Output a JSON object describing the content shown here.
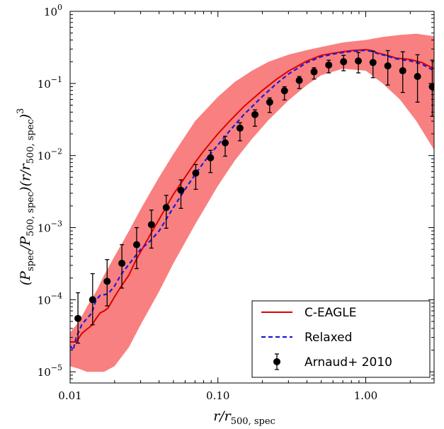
{
  "chart_data": {
    "type": "line",
    "title": "",
    "xlabel": "r/r_500,spec",
    "ylabel": "(P_spec/P_500,spec)(r/r_500,spec)^3",
    "xscale": "log",
    "yscale": "log",
    "xlim": [
      0.01,
      2.9
    ],
    "ylim": [
      7e-06,
      1.0
    ],
    "xticks": [
      {
        "value": 0.01,
        "label": "0.01"
      },
      {
        "value": 0.1,
        "label": "0.10"
      },
      {
        "value": 1.0,
        "label": "1.00"
      }
    ],
    "yticks": [
      {
        "value": 1e-05,
        "base": "10",
        "exp": "−5"
      },
      {
        "value": 0.0001,
        "base": "10",
        "exp": "−4"
      },
      {
        "value": 0.001,
        "base": "10",
        "exp": "−3"
      },
      {
        "value": 0.01,
        "base": "10",
        "exp": "−2"
      },
      {
        "value": 0.1,
        "base": "10",
        "exp": "−1"
      },
      {
        "value": 1,
        "base": "10",
        "exp": "0"
      }
    ],
    "grid": false,
    "legend": {
      "position": "bottom-right"
    },
    "colors": {
      "band": "#f98080",
      "cEagle": "#dd0000",
      "relaxed": "#1a1adf",
      "points": "#000000"
    },
    "band": {
      "x": [
        0.01,
        0.0115,
        0.013,
        0.015,
        0.017,
        0.02,
        0.025,
        0.03,
        0.04,
        0.05,
        0.07,
        0.1,
        0.13,
        0.17,
        0.22,
        0.3,
        0.4,
        0.5,
        0.7,
        1.0,
        1.3,
        1.7,
        2.2,
        2.9
      ],
      "upper": [
        3.5e-05,
        5e-05,
        8e-05,
        0.00013,
        0.00022,
        0.0004,
        0.0009,
        0.0018,
        0.005,
        0.0105,
        0.03,
        0.065,
        0.105,
        0.15,
        0.2,
        0.25,
        0.29,
        0.32,
        0.37,
        0.4,
        0.44,
        0.47,
        0.49,
        0.45
      ],
      "lower": [
        1.2e-05,
        1.1e-05,
        1e-05,
        1e-05,
        1e-05,
        1.2e-05,
        2.2e-05,
        4.5e-05,
        0.00013,
        0.00032,
        0.0011,
        0.0038,
        0.0085,
        0.017,
        0.031,
        0.058,
        0.095,
        0.13,
        0.16,
        0.15,
        0.1,
        0.06,
        0.03,
        0.012
      ]
    },
    "series": [
      {
        "name": "C-EAGLE",
        "x": [
          0.01,
          0.011,
          0.012,
          0.013,
          0.014,
          0.015,
          0.016,
          0.017,
          0.018,
          0.02,
          0.022,
          0.025,
          0.028,
          0.032,
          0.036,
          0.04,
          0.045,
          0.05,
          0.06,
          0.07,
          0.08,
          0.1,
          0.12,
          0.15,
          0.2,
          0.25,
          0.3,
          0.4,
          0.5,
          0.6,
          0.7,
          0.8,
          0.9,
          1.0,
          1.1,
          1.2,
          1.4,
          1.6,
          2.0,
          2.4,
          2.9
        ],
        "y": [
          2.6e-05,
          2.6e-05,
          3.4e-05,
          3.9e-05,
          4.4e-05,
          5.5e-05,
          6.6e-05,
          7e-05,
          7.6e-05,
          0.00011,
          0.00015,
          0.00022,
          0.00036,
          0.00058,
          0.0009,
          0.0013,
          0.002,
          0.0029,
          0.005,
          0.008,
          0.0115,
          0.02,
          0.03,
          0.048,
          0.08,
          0.115,
          0.148,
          0.205,
          0.245,
          0.262,
          0.275,
          0.285,
          0.29,
          0.295,
          0.285,
          0.265,
          0.245,
          0.225,
          0.215,
          0.195,
          0.16
        ]
      },
      {
        "name": "Relaxed",
        "x": [
          0.01,
          0.0105,
          0.011,
          0.012,
          0.013,
          0.014,
          0.015,
          0.016,
          0.018,
          0.02,
          0.022,
          0.025,
          0.03,
          0.035,
          0.04,
          0.05,
          0.06,
          0.07,
          0.08,
          0.1,
          0.12,
          0.15,
          0.2,
          0.25,
          0.3,
          0.4,
          0.5,
          0.6,
          0.7,
          0.8,
          0.9,
          1.0,
          1.1,
          1.2,
          1.4,
          1.6,
          2.0,
          2.4,
          2.9
        ],
        "y": [
          2.3e-05,
          2e-05,
          3e-05,
          4.5e-05,
          5.5e-05,
          6.5e-05,
          0.0001,
          0.000115,
          0.00012,
          0.000155,
          0.00022,
          0.00031,
          0.0005,
          0.00066,
          0.0009,
          0.0019,
          0.0034,
          0.0054,
          0.008,
          0.014,
          0.022,
          0.037,
          0.066,
          0.1,
          0.135,
          0.195,
          0.235,
          0.255,
          0.268,
          0.278,
          0.285,
          0.288,
          0.278,
          0.26,
          0.24,
          0.22,
          0.205,
          0.185,
          0.15
        ]
      },
      {
        "name": "Arnaud+ 2010",
        "type": "errorbar",
        "x": [
          0.0113,
          0.0142,
          0.0178,
          0.0224,
          0.0282,
          0.0355,
          0.0447,
          0.0562,
          0.0708,
          0.0891,
          0.112,
          0.141,
          0.178,
          0.224,
          0.282,
          0.355,
          0.447,
          0.562,
          0.708,
          0.891,
          1.12,
          1.41,
          1.78,
          2.24,
          2.82
        ],
        "y": [
          5.5e-05,
          0.0001,
          0.00018,
          0.00032,
          0.00058,
          0.0011,
          0.0019,
          0.0033,
          0.0057,
          0.0093,
          0.015,
          0.024,
          0.037,
          0.055,
          0.079,
          0.11,
          0.145,
          0.18,
          0.2,
          0.205,
          0.195,
          0.175,
          0.15,
          0.125,
          0.09
        ],
        "yerr_upper": [
          0.000125,
          0.00023,
          0.00036,
          0.00058,
          0.001,
          0.00175,
          0.0028,
          0.0046,
          0.0075,
          0.0118,
          0.0185,
          0.0285,
          0.043,
          0.063,
          0.09,
          0.125,
          0.165,
          0.21,
          0.245,
          0.27,
          0.28,
          0.285,
          0.275,
          0.25,
          0.21
        ],
        "yerr_lower": [
          2.5e-05,
          4.5e-05,
          8.2e-05,
          0.000145,
          0.00027,
          0.00052,
          0.00098,
          0.00185,
          0.0034,
          0.0058,
          0.0098,
          0.016,
          0.0255,
          0.0395,
          0.059,
          0.085,
          0.115,
          0.14,
          0.15,
          0.14,
          0.12,
          0.095,
          0.075,
          0.055,
          0.035
        ]
      }
    ]
  }
}
